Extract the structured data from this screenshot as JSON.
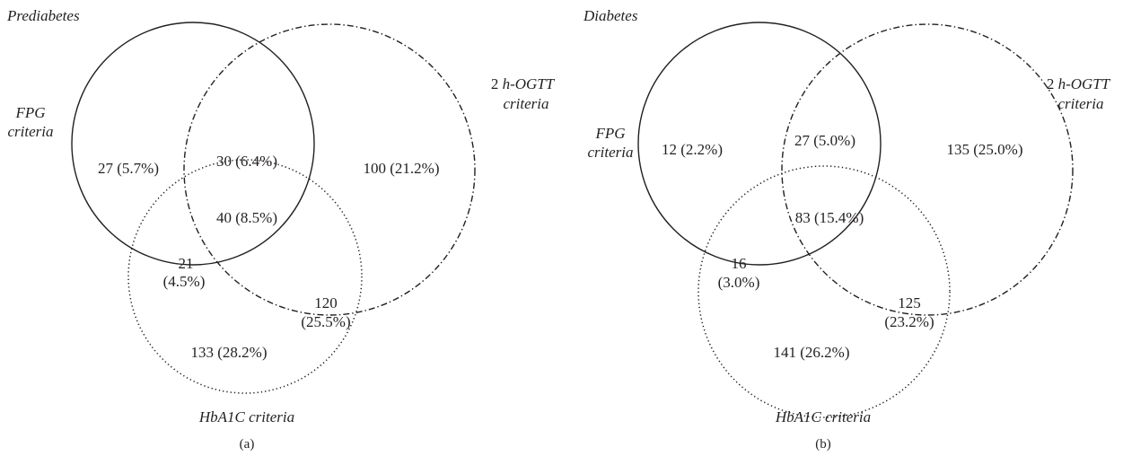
{
  "panels": [
    {
      "title": "Prediabetes",
      "fpg_label_line1": "FPG",
      "fpg_label_line2": "criteria",
      "ogtt_label_prefix": "2 ",
      "ogtt_label_h": "h",
      "ogtt_label_rest": "-OGTT",
      "ogtt_label_line2": "criteria",
      "hba1c_label": "HbA1C criteria",
      "caption": "(a)",
      "regions": {
        "fpg_only": "27 (5.7%)",
        "fpg_ogtt": "30 (6.4%)",
        "ogtt_only": "100 (21.2%)",
        "all_three": "40 (8.5%)",
        "fpg_hba1c_count": "21",
        "fpg_hba1c_pct": "(4.5%)",
        "ogtt_hba1c_count": "120",
        "ogtt_hba1c_pct": "(25.5%)",
        "hba1c_only": "133 (28.2%)"
      }
    },
    {
      "title": "Diabetes",
      "fpg_label_line1": "FPG",
      "fpg_label_line2": "criteria",
      "ogtt_label_prefix": "2 ",
      "ogtt_label_h": "h",
      "ogtt_label_rest": "-OGTT",
      "ogtt_label_line2": "criteria",
      "hba1c_label": "HbA1C criteria",
      "caption": "(b)",
      "regions": {
        "fpg_only": "12 (2.2%)",
        "fpg_ogtt": "27 (5.0%)",
        "ogtt_only": "135 (25.0%)",
        "all_three": "83 (15.4%)",
        "fpg_hba1c_count": "16",
        "fpg_hba1c_pct": "(3.0%)",
        "ogtt_hba1c_count": "125",
        "ogtt_hba1c_pct": "(23.2%)",
        "hba1c_only": "141 (26.2%)"
      }
    }
  ]
}
